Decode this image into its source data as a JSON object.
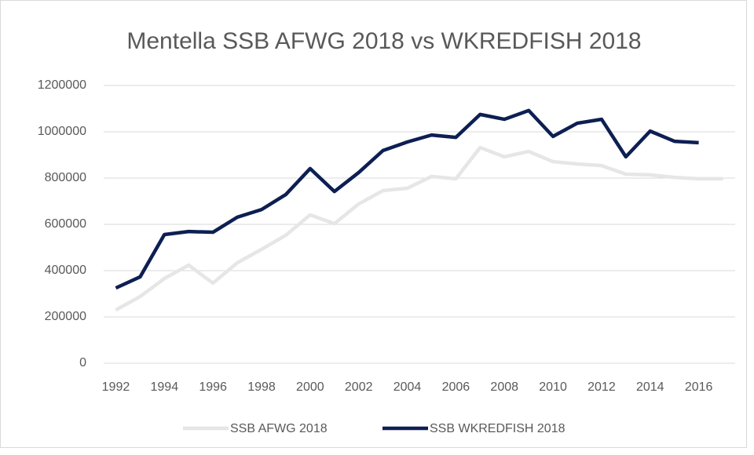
{
  "chart_data": {
    "type": "line",
    "title": "Mentella SSB AFWG 2018 vs WKREDFISH 2018",
    "x": [
      1992,
      1993,
      1994,
      1995,
      1996,
      1997,
      1998,
      1999,
      2000,
      2001,
      2002,
      2003,
      2004,
      2005,
      2006,
      2007,
      2008,
      2009,
      2010,
      2011,
      2012,
      2013,
      2014,
      2015,
      2016,
      2017
    ],
    "series": [
      {
        "name": "SSB AFWG 2018",
        "color": "#e6e6e6",
        "values": [
          230000,
          288000,
          366000,
          424000,
          346000,
          434000,
          492000,
          553000,
          641000,
          603000,
          688000,
          746000,
          756000,
          807000,
          797000,
          932000,
          892000,
          915000,
          871000,
          861000,
          854000,
          817000,
          814000,
          803000,
          797000,
          797000
        ]
      },
      {
        "name": "SSB WKREDFISH 2018",
        "color": "#0d1f52",
        "values": [
          325000,
          373000,
          556000,
          569000,
          566000,
          631000,
          664000,
          729000,
          841000,
          742000,
          824000,
          919000,
          956000,
          986000,
          976000,
          1075000,
          1054000,
          1092000,
          980000,
          1037000,
          1054000,
          892000,
          1003000,
          959000,
          953000,
          null
        ]
      }
    ],
    "xlim": [
      1991.5,
      2017.5
    ],
    "xticks": [
      1992,
      1994,
      1996,
      1998,
      2000,
      2002,
      2004,
      2006,
      2008,
      2010,
      2012,
      2014,
      2016
    ],
    "ylim": [
      0,
      1200000
    ],
    "yticks": [
      0,
      200000,
      400000,
      600000,
      800000,
      1000000,
      1200000
    ],
    "grid": true,
    "legend": "bottom"
  }
}
